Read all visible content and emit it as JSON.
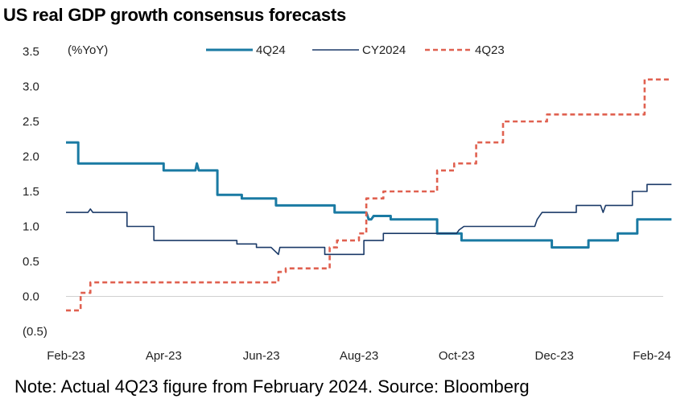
{
  "title": "US real GDP growth consensus forecasts",
  "note": "Note: Actual 4Q23 figure from February 2024. Source: Bloomberg",
  "chart_data": {
    "type": "line",
    "title": "US real GDP growth consensus forecasts",
    "ylabel": "(%YoY)",
    "xlabel": "",
    "xlim": [
      0,
      12.4
    ],
    "ylim": [
      -0.5,
      3.5
    ],
    "yticks": [
      {
        "value": 3.5,
        "label": "3.5"
      },
      {
        "value": 3.0,
        "label": "3.0"
      },
      {
        "value": 2.5,
        "label": "2.5"
      },
      {
        "value": 2.0,
        "label": "2.0"
      },
      {
        "value": 1.5,
        "label": "1.5"
      },
      {
        "value": 1.0,
        "label": "1.0"
      },
      {
        "value": 0.5,
        "label": "0.5"
      },
      {
        "value": 0.0,
        "label": "0.0"
      },
      {
        "value": -0.5,
        "label": "(0.5)"
      }
    ],
    "xticks": [
      {
        "value": 0,
        "label": "Feb-23"
      },
      {
        "value": 2,
        "label": "Apr-23"
      },
      {
        "value": 4,
        "label": "Jun-23"
      },
      {
        "value": 6,
        "label": "Aug-23"
      },
      {
        "value": 8,
        "label": "Oct-23"
      },
      {
        "value": 10,
        "label": "Dec-23"
      },
      {
        "value": 12,
        "label": "Feb-24"
      }
    ],
    "grid": false,
    "legend_position": "top",
    "series": [
      {
        "name": "4Q24",
        "color": "#1a7aa3",
        "style": "solid-thick",
        "x": [
          0,
          0.25,
          0.25,
          2.0,
          2.0,
          2.65,
          2.68,
          2.72,
          2.75,
          3.1,
          3.1,
          3.6,
          3.6,
          4.3,
          4.3,
          5.5,
          5.5,
          6.15,
          6.2,
          6.25,
          6.3,
          6.65,
          6.65,
          7.6,
          7.6,
          8.1,
          8.1,
          9.1,
          9.1,
          9.95,
          9.95,
          10.7,
          10.7,
          11.3,
          11.3,
          11.7,
          11.7,
          12.4
        ],
        "y": [
          2.2,
          2.2,
          1.9,
          1.9,
          1.8,
          1.8,
          1.9,
          1.8,
          1.8,
          1.8,
          1.45,
          1.45,
          1.4,
          1.4,
          1.3,
          1.3,
          1.2,
          1.2,
          1.1,
          1.1,
          1.15,
          1.15,
          1.1,
          1.1,
          0.9,
          0.9,
          0.8,
          0.8,
          0.8,
          0.8,
          0.7,
          0.7,
          0.8,
          0.8,
          0.9,
          0.9,
          1.1,
          1.1
        ]
      },
      {
        "name": "CY2024",
        "color": "#1b3a68",
        "style": "solid-thin",
        "x": [
          0,
          0.45,
          0.5,
          0.55,
          1.25,
          1.25,
          1.8,
          1.8,
          3.5,
          3.5,
          3.9,
          3.9,
          4.2,
          4.2,
          4.35,
          4.38,
          4.42,
          4.45,
          5.3,
          5.3,
          6.1,
          6.1,
          6.5,
          6.5,
          8.0,
          8.05,
          8.15,
          9.6,
          9.65,
          9.75,
          10.45,
          10.45,
          10.95,
          11.0,
          11.05,
          11.2,
          11.2,
          11.6,
          11.6,
          11.9,
          11.9,
          12.4
        ],
        "y": [
          1.2,
          1.2,
          1.25,
          1.2,
          1.2,
          1.0,
          1.0,
          0.8,
          0.8,
          0.75,
          0.75,
          0.7,
          0.7,
          0.7,
          0.6,
          0.7,
          0.7,
          0.7,
          0.7,
          0.6,
          0.6,
          0.8,
          0.8,
          0.9,
          0.9,
          0.95,
          1.0,
          1.0,
          1.1,
          1.2,
          1.2,
          1.3,
          1.3,
          1.2,
          1.3,
          1.3,
          1.3,
          1.3,
          1.5,
          1.5,
          1.6,
          1.6
        ]
      },
      {
        "name": "4Q23",
        "color": "#e06150",
        "style": "dashed",
        "x": [
          0,
          0.3,
          0.3,
          0.5,
          0.5,
          0.75,
          0.75,
          4.35,
          4.35,
          4.5,
          4.5,
          5.4,
          5.4,
          5.55,
          5.55,
          6.0,
          6.0,
          6.15,
          6.15,
          6.5,
          6.5,
          6.65,
          6.65,
          7.6,
          7.6,
          7.95,
          7.95,
          8.4,
          8.4,
          8.95,
          8.95,
          9.85,
          9.85,
          10.6,
          10.6,
          11.85,
          11.85,
          12.4
        ],
        "y": [
          -0.2,
          -0.2,
          0.05,
          0.05,
          0.2,
          0.2,
          0.2,
          0.2,
          0.35,
          0.35,
          0.4,
          0.4,
          0.7,
          0.7,
          0.8,
          0.8,
          0.9,
          0.9,
          1.4,
          1.4,
          1.5,
          1.5,
          1.5,
          1.5,
          1.8,
          1.8,
          1.9,
          1.9,
          2.2,
          2.2,
          2.5,
          2.5,
          2.6,
          2.6,
          2.6,
          2.6,
          3.1,
          3.1
        ]
      }
    ]
  }
}
